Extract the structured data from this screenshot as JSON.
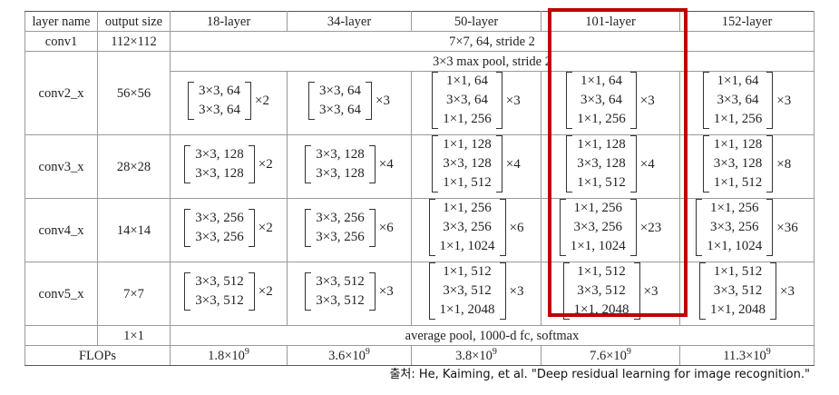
{
  "headers": [
    "layer name",
    "output size",
    "18-layer",
    "34-layer",
    "50-layer",
    "101-layer",
    "152-layer"
  ],
  "conv1": {
    "name": "conv1",
    "size": "112×112",
    "spec": "7×7, 64, stride 2"
  },
  "pool": {
    "spec": "3×3 max pool, stride 2"
  },
  "stages": [
    {
      "name": "conv2_x",
      "size": "56×56",
      "cells": [
        {
          "rows": [
            "3×3, 64",
            "3×3, 64"
          ],
          "mult": "×2"
        },
        {
          "rows": [
            "3×3, 64",
            "3×3, 64"
          ],
          "mult": "×3"
        },
        {
          "rows": [
            "1×1, 64",
            "3×3, 64",
            "1×1, 256"
          ],
          "mult": "×3"
        },
        {
          "rows": [
            "1×1, 64",
            "3×3, 64",
            "1×1, 256"
          ],
          "mult": "×3"
        },
        {
          "rows": [
            "1×1, 64",
            "3×3, 64",
            "1×1, 256"
          ],
          "mult": "×3"
        }
      ]
    },
    {
      "name": "conv3_x",
      "size": "28×28",
      "cells": [
        {
          "rows": [
            "3×3, 128",
            "3×3, 128"
          ],
          "mult": "×2"
        },
        {
          "rows": [
            "3×3, 128",
            "3×3, 128"
          ],
          "mult": "×4"
        },
        {
          "rows": [
            "1×1, 128",
            "3×3, 128",
            "1×1, 512"
          ],
          "mult": "×4"
        },
        {
          "rows": [
            "1×1, 128",
            "3×3, 128",
            "1×1, 512"
          ],
          "mult": "×4"
        },
        {
          "rows": [
            "1×1, 128",
            "3×3, 128",
            "1×1, 512"
          ],
          "mult": "×8"
        }
      ]
    },
    {
      "name": "conv4_x",
      "size": "14×14",
      "cells": [
        {
          "rows": [
            "3×3, 256",
            "3×3, 256"
          ],
          "mult": "×2"
        },
        {
          "rows": [
            "3×3, 256",
            "3×3, 256"
          ],
          "mult": "×6"
        },
        {
          "rows": [
            "1×1, 256",
            "3×3, 256",
            "1×1, 1024"
          ],
          "mult": "×6"
        },
        {
          "rows": [
            "1×1, 256",
            "3×3, 256",
            "1×1, 1024"
          ],
          "mult": "×23"
        },
        {
          "rows": [
            "1×1, 256",
            "3×3, 256",
            "1×1, 1024"
          ],
          "mult": "×36"
        }
      ]
    },
    {
      "name": "conv5_x",
      "size": "7×7",
      "cells": [
        {
          "rows": [
            "3×3, 512",
            "3×3, 512"
          ],
          "mult": "×2"
        },
        {
          "rows": [
            "3×3, 512",
            "3×3, 512"
          ],
          "mult": "×3"
        },
        {
          "rows": [
            "1×1, 512",
            "3×3, 512",
            "1×1, 2048"
          ],
          "mult": "×3"
        },
        {
          "rows": [
            "1×1, 512",
            "3×3, 512",
            "1×1, 2048"
          ],
          "mult": "×3"
        },
        {
          "rows": [
            "1×1, 512",
            "3×3, 512",
            "1×1, 2048"
          ],
          "mult": "×3"
        }
      ]
    }
  ],
  "final": {
    "size": "1×1",
    "spec": "average pool, 1000-d fc, softmax"
  },
  "flops": {
    "label": "FLOPs",
    "base": "×10",
    "exp": "9",
    "values": [
      "1.8",
      "3.6",
      "3.8",
      "7.6",
      "11.3"
    ]
  },
  "highlight_color": "#c00000",
  "source": "출처: He, Kaiming, et al. \"Deep residual learning for image recognition.\""
}
